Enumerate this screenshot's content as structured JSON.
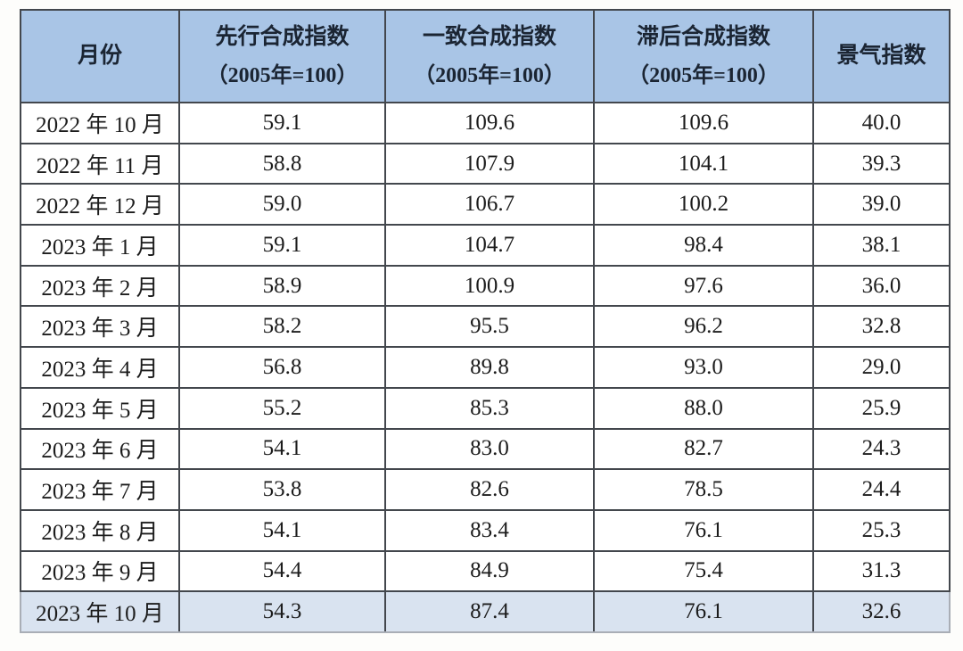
{
  "table": {
    "columns": [
      {
        "label": "月份",
        "sub": ""
      },
      {
        "label": "先行合成指数",
        "sub": "（2005年=100）"
      },
      {
        "label": "一致合成指数",
        "sub": "（2005年=100）"
      },
      {
        "label": "滞后合成指数",
        "sub": "（2005年=100）"
      },
      {
        "label": "景气指数",
        "sub": ""
      }
    ],
    "rows": [
      {
        "month": "2022 年 10 月",
        "leading": "59.1",
        "coincident": "109.6",
        "lagging": "109.6",
        "prosperity": "40.0",
        "highlight": false
      },
      {
        "month": "2022 年 11 月",
        "leading": "58.8",
        "coincident": "107.9",
        "lagging": "104.1",
        "prosperity": "39.3",
        "highlight": false
      },
      {
        "month": "2022 年 12 月",
        "leading": "59.0",
        "coincident": "106.7",
        "lagging": "100.2",
        "prosperity": "39.0",
        "highlight": false
      },
      {
        "month": "2023 年 1 月",
        "leading": "59.1",
        "coincident": "104.7",
        "lagging": "98.4",
        "prosperity": "38.1",
        "highlight": false
      },
      {
        "month": "2023 年 2 月",
        "leading": "58.9",
        "coincident": "100.9",
        "lagging": "97.6",
        "prosperity": "36.0",
        "highlight": false
      },
      {
        "month": "2023 年 3 月",
        "leading": "58.2",
        "coincident": "95.5",
        "lagging": "96.2",
        "prosperity": "32.8",
        "highlight": false
      },
      {
        "month": "2023 年 4 月",
        "leading": "56.8",
        "coincident": "89.8",
        "lagging": "93.0",
        "prosperity": "29.0",
        "highlight": false
      },
      {
        "month": "2023 年 5 月",
        "leading": "55.2",
        "coincident": "85.3",
        "lagging": "88.0",
        "prosperity": "25.9",
        "highlight": false
      },
      {
        "month": "2023 年 6 月",
        "leading": "54.1",
        "coincident": "83.0",
        "lagging": "82.7",
        "prosperity": "24.3",
        "highlight": false
      },
      {
        "month": "2023 年 7 月",
        "leading": "53.8",
        "coincident": "82.6",
        "lagging": "78.5",
        "prosperity": "24.4",
        "highlight": false
      },
      {
        "month": "2023 年 8 月",
        "leading": "54.1",
        "coincident": "83.4",
        "lagging": "76.1",
        "prosperity": "25.3",
        "highlight": false
      },
      {
        "month": "2023 年 9 月",
        "leading": "54.4",
        "coincident": "84.9",
        "lagging": "75.4",
        "prosperity": "31.3",
        "highlight": false
      },
      {
        "month": "2023 年 10 月",
        "leading": "54.3",
        "coincident": "87.4",
        "lagging": "76.1",
        "prosperity": "32.6",
        "highlight": true
      }
    ]
  },
  "colors": {
    "header_bg": "#a9c5e6",
    "highlight_row_bg": "#d9e3f0",
    "border": "#43474d",
    "highlight_border": "#a9aeb6",
    "body_bg": "#ffffff",
    "text": "#1c1c1c",
    "header_text": "#1b2533"
  },
  "chart_data": {
    "type": "table",
    "title": "",
    "categories": [
      "2022年10月",
      "2022年11月",
      "2022年12月",
      "2023年1月",
      "2023年2月",
      "2023年3月",
      "2023年4月",
      "2023年5月",
      "2023年6月",
      "2023年7月",
      "2023年8月",
      "2023年9月",
      "2023年10月"
    ],
    "series": [
      {
        "name": "先行合成指数（2005年=100）",
        "values": [
          59.1,
          58.8,
          59.0,
          59.1,
          58.9,
          58.2,
          56.8,
          55.2,
          54.1,
          53.8,
          54.1,
          54.4,
          54.3
        ]
      },
      {
        "name": "一致合成指数（2005年=100）",
        "values": [
          109.6,
          107.9,
          106.7,
          104.7,
          100.9,
          95.5,
          89.8,
          85.3,
          83.0,
          82.6,
          83.4,
          84.9,
          87.4
        ]
      },
      {
        "name": "滞后合成指数（2005年=100）",
        "values": [
          109.6,
          104.1,
          100.2,
          98.4,
          97.6,
          96.2,
          93.0,
          88.0,
          82.7,
          78.5,
          76.1,
          75.4,
          76.1
        ]
      },
      {
        "name": "景气指数",
        "values": [
          40.0,
          39.3,
          39.0,
          38.1,
          36.0,
          32.8,
          29.0,
          25.9,
          24.3,
          24.4,
          25.3,
          31.3,
          32.6
        ]
      }
    ],
    "highlighted_row": "2023年10月"
  }
}
